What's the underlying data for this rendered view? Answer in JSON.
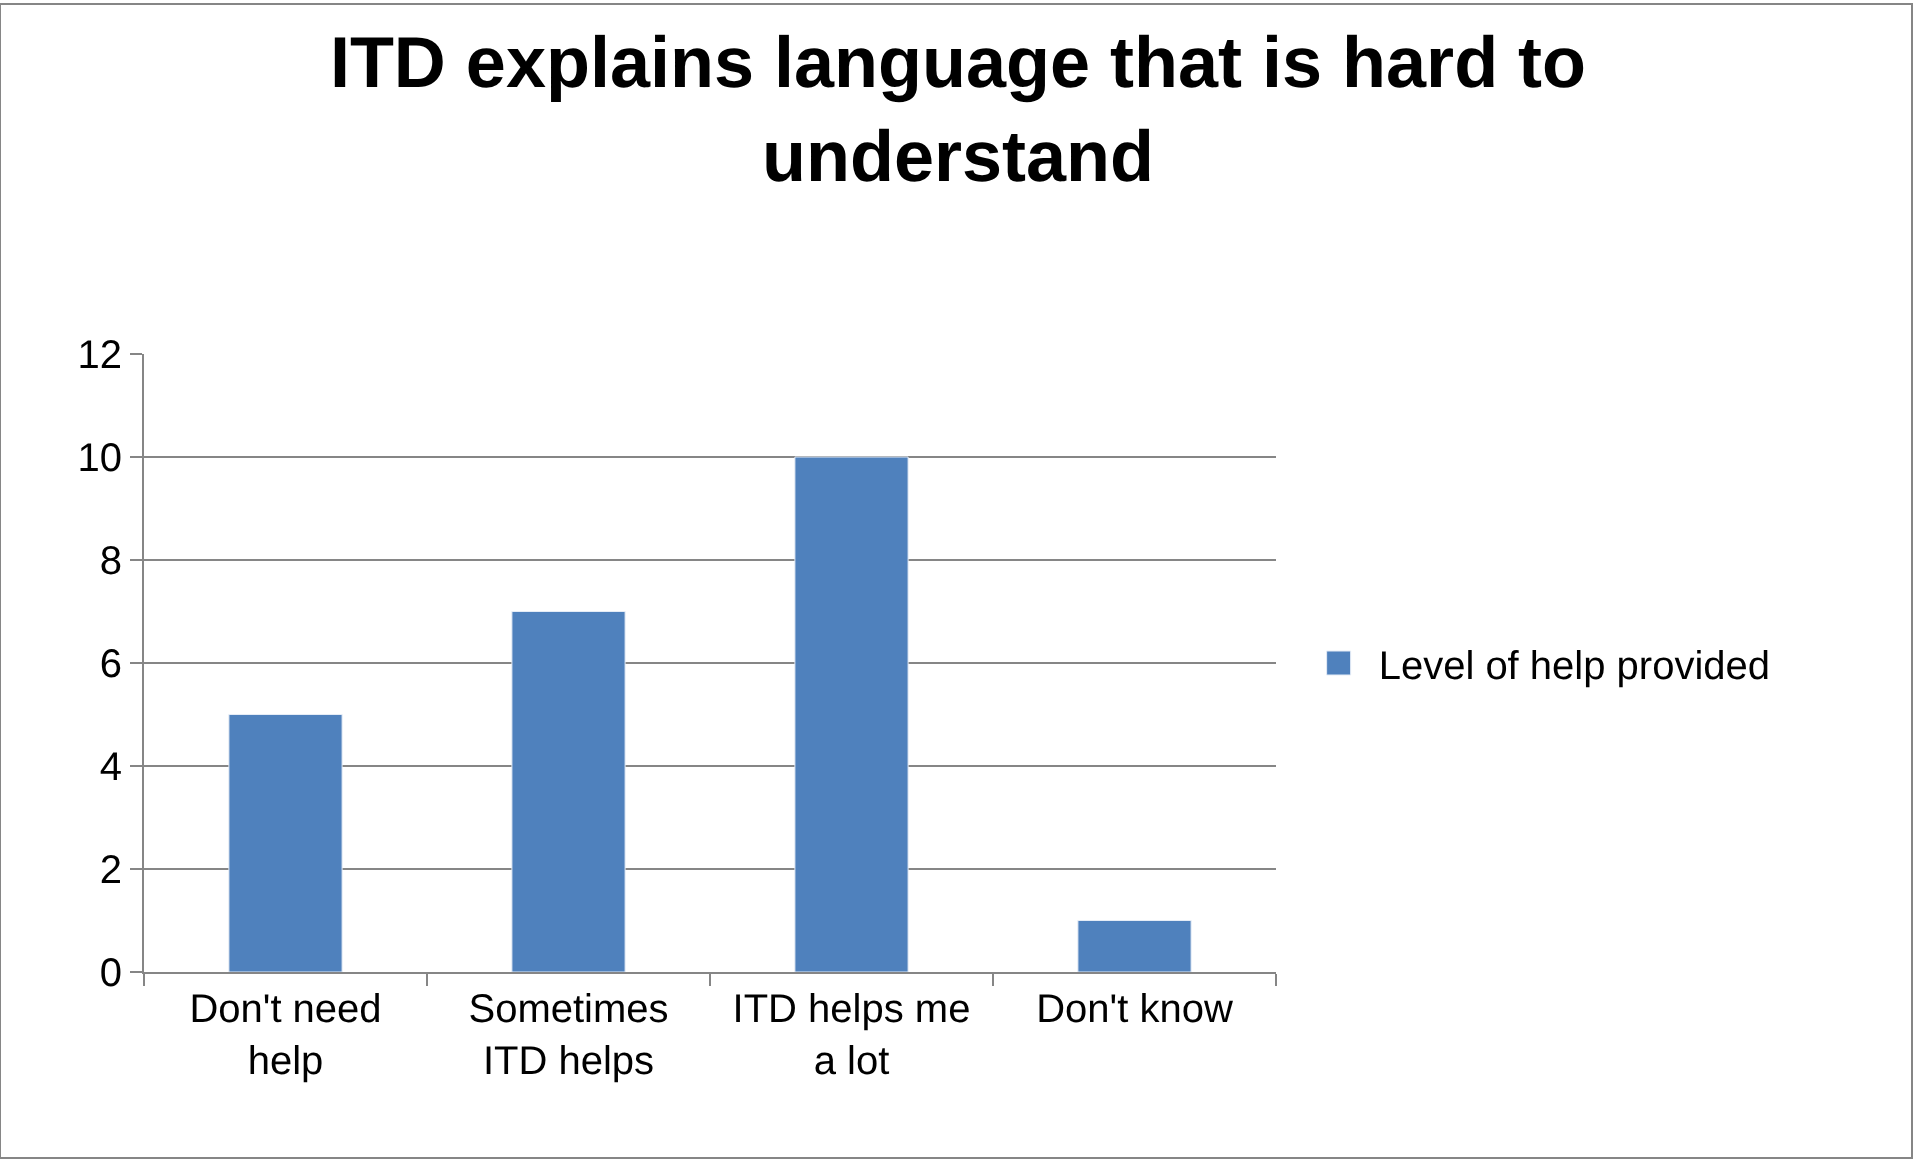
{
  "chart_data": {
    "type": "bar",
    "title": "ITD explains language that is hard to understand",
    "categories": [
      "Don't need help",
      "Sometimes ITD helps",
      "ITD helps me a lot",
      "Don't know"
    ],
    "series": [
      {
        "name": "Level of help provided",
        "color": "#4f81bd",
        "values": [
          5,
          7,
          10,
          1
        ]
      }
    ],
    "ylim": [
      0,
      12
    ],
    "yticks": [
      0,
      2,
      4,
      6,
      8,
      10,
      12
    ],
    "grid": "y",
    "legend": "right"
  }
}
